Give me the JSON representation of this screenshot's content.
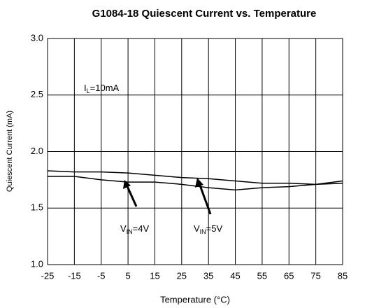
{
  "chart_data": {
    "type": "line",
    "title": "G1084-18 Quiescent Current vs. Temperature",
    "x_label": "Temperature (°C)",
    "y_label": "Quiescent Current (mA)",
    "x": [
      -25,
      -15,
      -5,
      5,
      15,
      25,
      35,
      45,
      55,
      65,
      75,
      85
    ],
    "series": [
      {
        "color": "#000000",
        "values": [
          1.78,
          1.78,
          1.75,
          1.73,
          1.73,
          1.71,
          1.68,
          1.66,
          1.68,
          1.69,
          1.71,
          1.74
        ]
      },
      {
        "color": "#000000",
        "values": [
          1.83,
          1.82,
          1.82,
          1.81,
          1.79,
          1.77,
          1.76,
          1.74,
          1.72,
          1.72,
          1.71,
          1.72
        ]
      }
    ],
    "annotations": [
      {
        "main": "I",
        "sub": "L",
        "rest": "=10mA"
      },
      {
        "main": "V",
        "sub": "IN",
        "rest": "=4V"
      },
      {
        "main": "V",
        "sub": "IN",
        "rest": "=5V"
      }
    ],
    "xlim": [
      -25,
      85
    ],
    "xticks": [
      -25,
      -15,
      -5,
      5,
      15,
      25,
      35,
      45,
      55,
      65,
      75,
      85
    ],
    "ylim": [
      1.0,
      3.0
    ],
    "yticks": [
      {
        "value": 1.0,
        "label": "1.0"
      },
      {
        "value": 1.5,
        "label": "1.5"
      },
      {
        "value": 2.0,
        "label": "2.0"
      },
      {
        "value": 2.5,
        "label": "2.5"
      },
      {
        "value": 3.0,
        "label": "3.0"
      }
    ],
    "grid": true
  }
}
